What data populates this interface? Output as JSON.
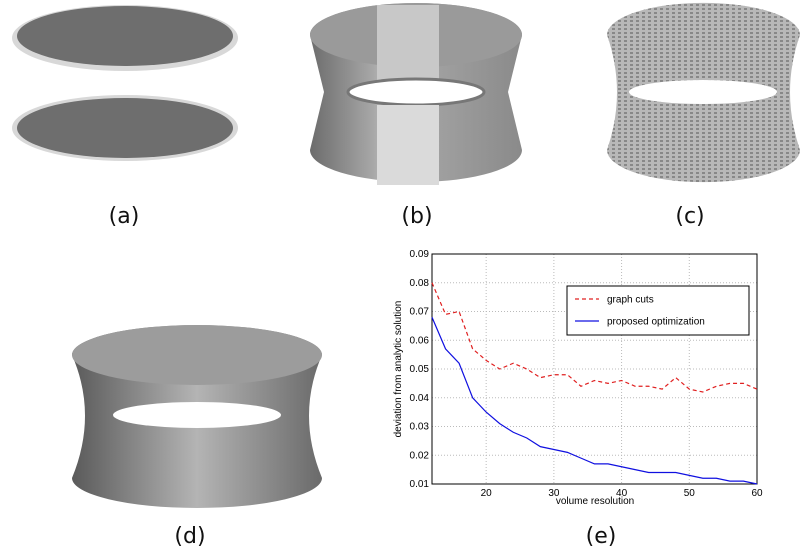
{
  "captions": [
    "(a)",
    "(b)",
    "(c)",
    "(d)",
    "(e)"
  ],
  "chart_data": {
    "type": "line",
    "xlabel": "volume resolution",
    "ylabel": "deviation from analytic solution",
    "x": [
      12,
      14,
      16,
      18,
      20,
      22,
      24,
      26,
      28,
      30,
      32,
      34,
      36,
      38,
      40,
      42,
      44,
      46,
      48,
      50,
      52,
      54,
      56,
      58,
      60
    ],
    "series": [
      {
        "name": "graph cuts",
        "color": "#e02020",
        "dash": true,
        "values": [
          0.08,
          0.069,
          0.07,
          0.057,
          0.053,
          0.05,
          0.052,
          0.05,
          0.047,
          0.048,
          0.048,
          0.044,
          0.046,
          0.045,
          0.046,
          0.044,
          0.044,
          0.043,
          0.047,
          0.043,
          0.042,
          0.044,
          0.045,
          0.045,
          0.043
        ]
      },
      {
        "name": "proposed optimization",
        "color": "#1010e0",
        "dash": false,
        "values": [
          0.068,
          0.057,
          0.052,
          0.04,
          0.035,
          0.031,
          0.028,
          0.026,
          0.023,
          0.022,
          0.021,
          0.019,
          0.017,
          0.017,
          0.016,
          0.015,
          0.014,
          0.014,
          0.014,
          0.013,
          0.012,
          0.012,
          0.011,
          0.011,
          0.01
        ]
      }
    ],
    "xlim": [
      12,
      60
    ],
    "xticks": [
      20,
      30,
      40,
      50,
      60
    ],
    "ylim": [
      0.01,
      0.09
    ],
    "yticks": [
      0.01,
      0.02,
      0.03,
      0.04,
      0.05,
      0.06,
      0.07,
      0.08,
      0.09
    ],
    "grid": true,
    "legend": "upper right"
  }
}
